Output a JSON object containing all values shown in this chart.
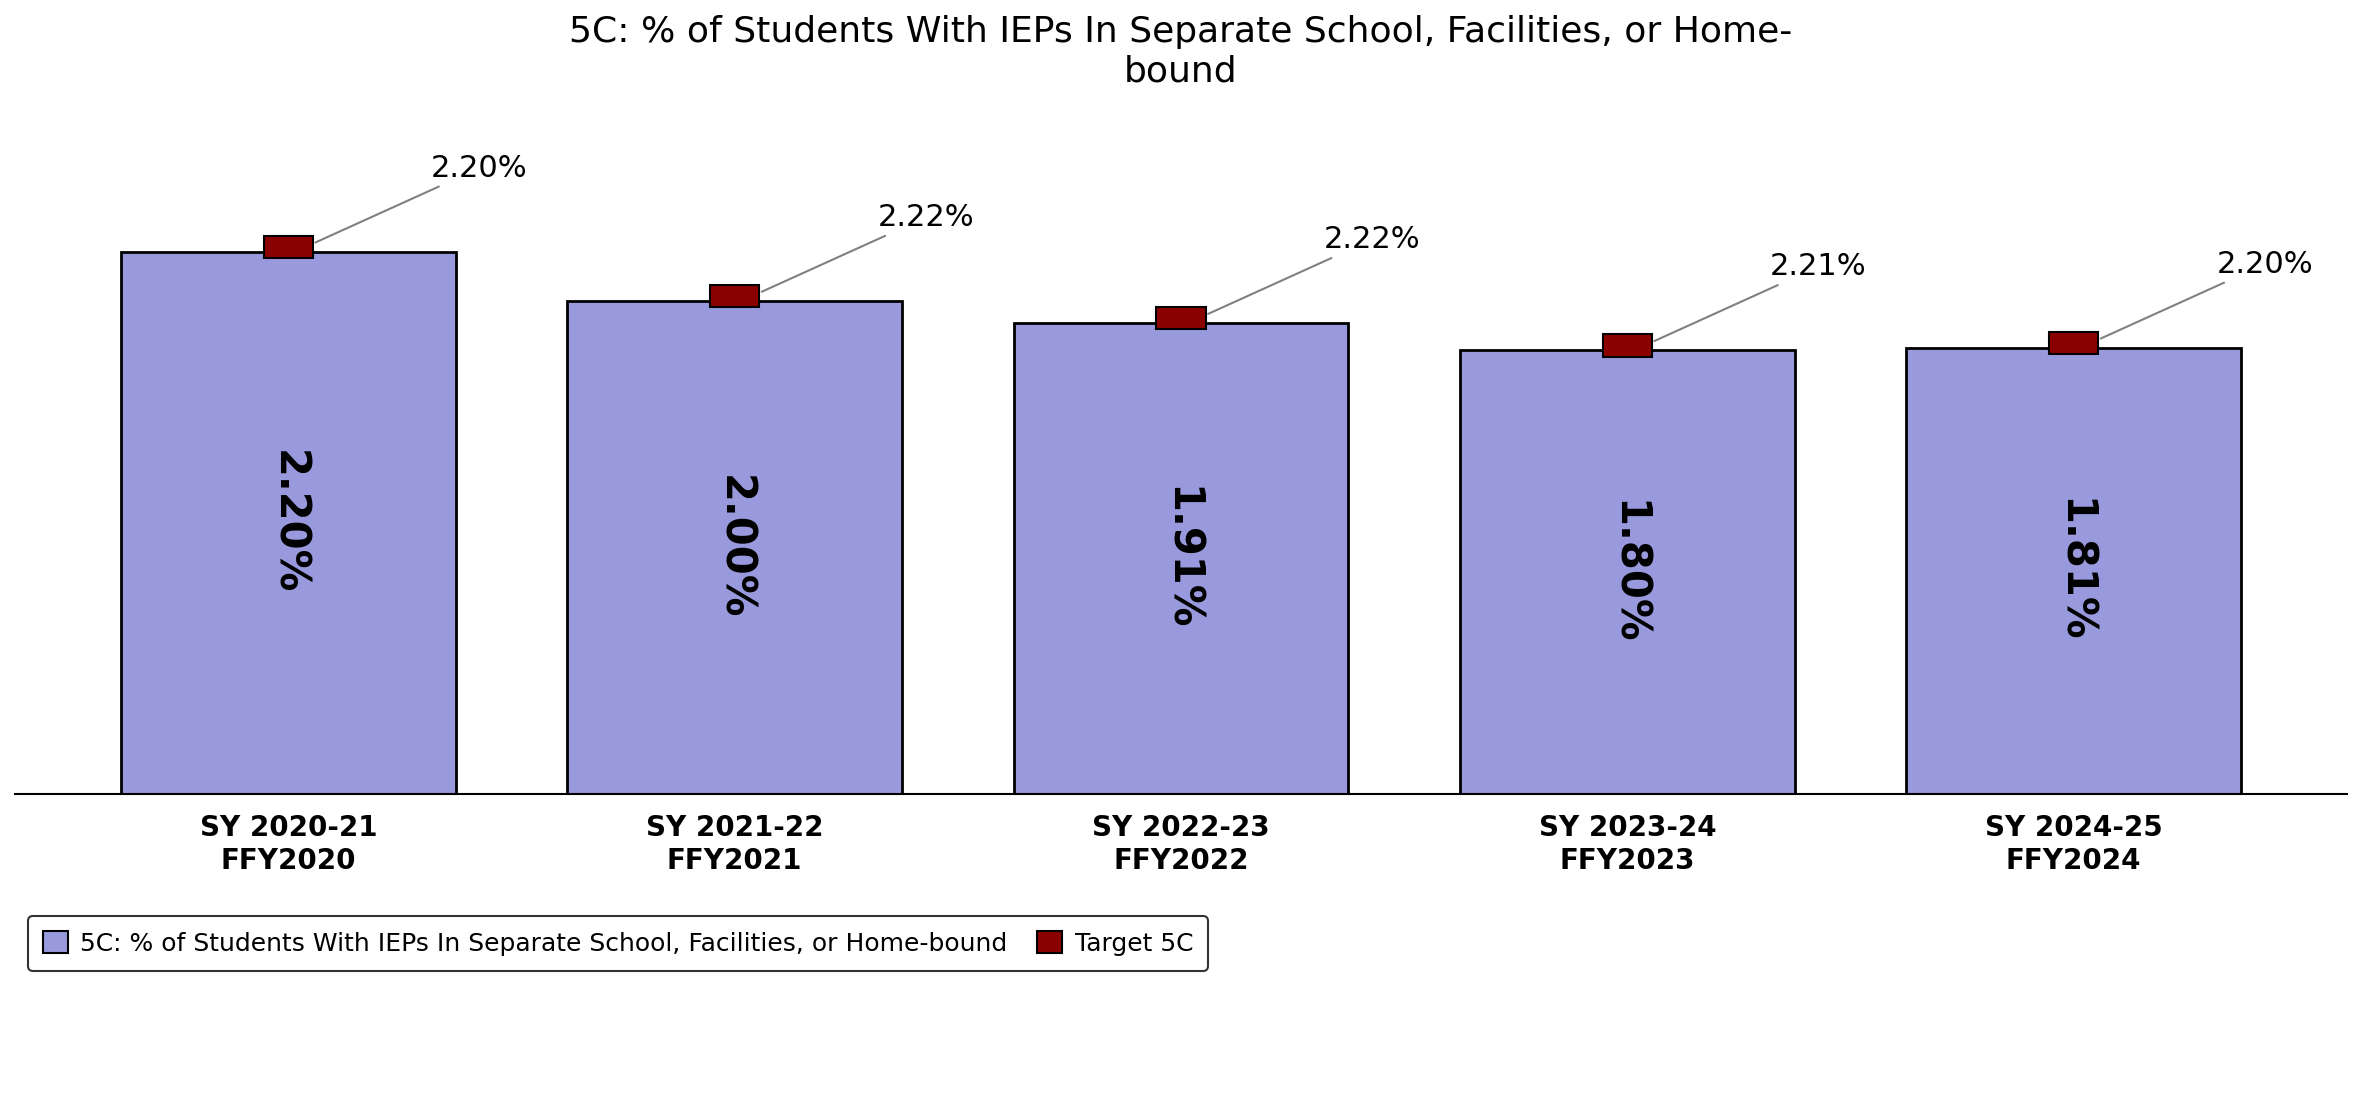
{
  "title": "5C: % of Students With IEPs In Separate School, Facilities, or Home-\nbound",
  "categories": [
    "SY 2020-21\nFFY2020",
    "SY 2021-22\nFFY2021",
    "SY 2022-23\nFFY2022",
    "SY 2023-24\nFFY2023",
    "SY 2024-25\nFFY2024"
  ],
  "bar_values": [
    2.2,
    2.0,
    1.91,
    1.8,
    1.81
  ],
  "bar_labels": [
    "2.20%",
    "2.00%",
    "1.91%",
    "1.80%",
    "1.81%"
  ],
  "target_values": [
    2.2,
    2.22,
    2.22,
    2.21,
    2.2
  ],
  "target_labels": [
    "2.20%",
    "2.22%",
    "2.22%",
    "2.21%",
    "2.20%"
  ],
  "bar_color": "#9999dd",
  "bar_edge_color": "#000000",
  "target_color": "#8B0000",
  "ylim": [
    0,
    2.75
  ],
  "title_fontsize": 26,
  "bar_label_fontsize": 30,
  "tick_label_fontsize": 20,
  "legend_fontsize": 18,
  "annotation_fontsize": 22,
  "legend_bar_label": "5C: % of Students With IEPs In Separate School, Facilities, or Home-bound",
  "legend_target_label": "Target 5C",
  "background_color": "#ffffff"
}
